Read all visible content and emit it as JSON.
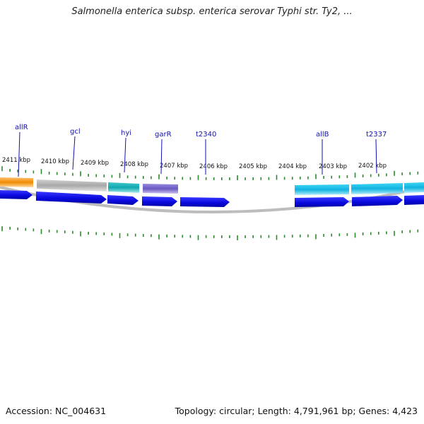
{
  "title": "Salmonella enterica subsp. enterica serovar Typhi str. Ty2, ...",
  "footer": {
    "accession": "Accession: NC_004631",
    "summary": "Topology: circular; Length: 4,791,961 bp; Genes: 4,423"
  },
  "colors": {
    "cds": "#0a0ae6",
    "tick": "#2a8a2a",
    "backbone": "#808080",
    "label": "#1010b0"
  },
  "ticks": [
    {
      "label": "2411 kbp"
    },
    {
      "label": "2410 kbp"
    },
    {
      "label": "2409 kbp"
    },
    {
      "label": "2408 kbp"
    },
    {
      "label": "2407 kbp"
    },
    {
      "label": "2406 kbp"
    },
    {
      "label": "2405 kbp"
    },
    {
      "label": "2404 kbp"
    },
    {
      "label": "2403 kbp"
    },
    {
      "label": "2402 kbp"
    }
  ],
  "gene_labels": [
    {
      "name": "allR"
    },
    {
      "name": "gcl"
    },
    {
      "name": "hyi"
    },
    {
      "name": "garR"
    },
    {
      "name": "t2340"
    },
    {
      "name": "allB"
    },
    {
      "name": "t2337"
    }
  ],
  "feature_colors": [
    "#f59a10",
    "#b8b8b8",
    "#20b8c0",
    "#7a68cc",
    "#20c0e8",
    "#20c0e8",
    "#20c0e8"
  ]
}
